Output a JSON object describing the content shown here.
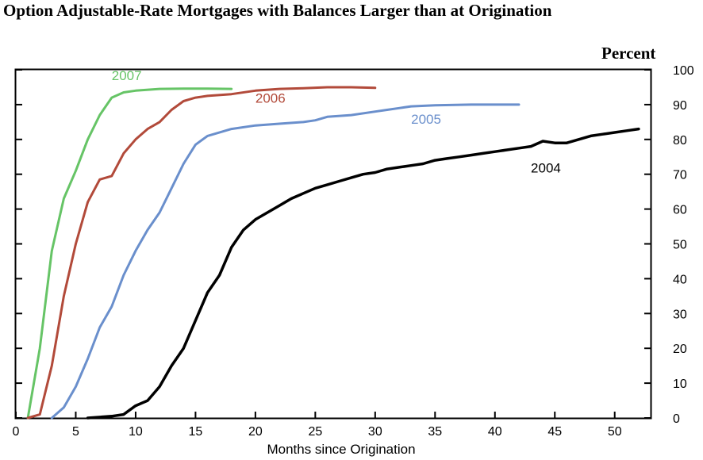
{
  "chart_data": {
    "type": "line",
    "title": "Option Adjustable-Rate Mortgages with Balances Larger than at Origination",
    "xlabel": "Months since Origination",
    "ylabel": "Percent",
    "xlim": [
      0,
      53
    ],
    "ylim": [
      0,
      100
    ],
    "x_ticks": [
      0,
      5,
      10,
      15,
      20,
      25,
      30,
      35,
      40,
      45,
      50
    ],
    "y_ticks": [
      0,
      10,
      20,
      30,
      40,
      50,
      60,
      70,
      80,
      90,
      100
    ],
    "y_axis_side": "right",
    "grid": false,
    "series": [
      {
        "name": "2007",
        "color": "#66c466",
        "points": [
          [
            1,
            0
          ],
          [
            2,
            20
          ],
          [
            3,
            48
          ],
          [
            4,
            63
          ],
          [
            5,
            71
          ],
          [
            6,
            80
          ],
          [
            7,
            87
          ],
          [
            8,
            92
          ],
          [
            9,
            93.5
          ],
          [
            10,
            94
          ],
          [
            12,
            94.5
          ],
          [
            14,
            94.6
          ],
          [
            16,
            94.6
          ],
          [
            18,
            94.5
          ]
        ]
      },
      {
        "name": "2006",
        "color": "#b24a3a",
        "points": [
          [
            1,
            0
          ],
          [
            2,
            1
          ],
          [
            3,
            15
          ],
          [
            4,
            35
          ],
          [
            5,
            50
          ],
          [
            6,
            62
          ],
          [
            7,
            68.5
          ],
          [
            8,
            69.5
          ],
          [
            9,
            76
          ],
          [
            10,
            80
          ],
          [
            11,
            83
          ],
          [
            12,
            85
          ],
          [
            13,
            88.5
          ],
          [
            14,
            91
          ],
          [
            15,
            92
          ],
          [
            16,
            92.5
          ],
          [
            18,
            93
          ],
          [
            20,
            94
          ],
          [
            22,
            94.5
          ],
          [
            24,
            94.7
          ],
          [
            26,
            95
          ],
          [
            28,
            95
          ],
          [
            30,
            94.8
          ]
        ]
      },
      {
        "name": "2005",
        "color": "#6a8fcc",
        "points": [
          [
            3,
            0
          ],
          [
            4,
            3
          ],
          [
            5,
            9
          ],
          [
            6,
            17
          ],
          [
            7,
            26
          ],
          [
            8,
            32
          ],
          [
            9,
            41
          ],
          [
            10,
            48
          ],
          [
            11,
            54
          ],
          [
            12,
            59
          ],
          [
            13,
            66
          ],
          [
            14,
            73
          ],
          [
            15,
            78.5
          ],
          [
            16,
            81
          ],
          [
            18,
            83
          ],
          [
            20,
            84
          ],
          [
            22,
            84.5
          ],
          [
            24,
            85
          ],
          [
            25,
            85.5
          ],
          [
            26,
            86.5
          ],
          [
            28,
            87
          ],
          [
            30,
            88
          ],
          [
            31,
            88.5
          ],
          [
            32,
            89
          ],
          [
            33,
            89.5
          ],
          [
            35,
            89.8
          ],
          [
            38,
            90
          ],
          [
            42,
            90
          ]
        ]
      },
      {
        "name": "2004",
        "color": "#000000",
        "points": [
          [
            6,
            0
          ],
          [
            8,
            0.5
          ],
          [
            9,
            1
          ],
          [
            10,
            3.5
          ],
          [
            11,
            5
          ],
          [
            12,
            9
          ],
          [
            13,
            15
          ],
          [
            14,
            20
          ],
          [
            15,
            28
          ],
          [
            16,
            36
          ],
          [
            17,
            41
          ],
          [
            18,
            49
          ],
          [
            19,
            54
          ],
          [
            20,
            57
          ],
          [
            21,
            59
          ],
          [
            22,
            61
          ],
          [
            23,
            63
          ],
          [
            24,
            64.5
          ],
          [
            25,
            66
          ],
          [
            26,
            67
          ],
          [
            27,
            68
          ],
          [
            28,
            69
          ],
          [
            29,
            70
          ],
          [
            30,
            70.5
          ],
          [
            31,
            71.5
          ],
          [
            32,
            72
          ],
          [
            33,
            72.5
          ],
          [
            34,
            73
          ],
          [
            35,
            74
          ],
          [
            36,
            74.5
          ],
          [
            37,
            75
          ],
          [
            38,
            75.5
          ],
          [
            39,
            76
          ],
          [
            40,
            76.5
          ],
          [
            41,
            77
          ],
          [
            42,
            77.5
          ],
          [
            43,
            78
          ],
          [
            44,
            79.5
          ],
          [
            45,
            79
          ],
          [
            46,
            79
          ],
          [
            47,
            80
          ],
          [
            48,
            81
          ],
          [
            49,
            81.5
          ],
          [
            50,
            82
          ],
          [
            51,
            82.5
          ],
          [
            52,
            83
          ]
        ]
      }
    ],
    "annotations": [
      {
        "text": "2007",
        "x": 8,
        "y": 97,
        "color": "#66c466"
      },
      {
        "text": "2006",
        "x": 20,
        "y": 90.5,
        "color": "#b24a3a"
      },
      {
        "text": "2005",
        "x": 33,
        "y": 84.5,
        "color": "#6a8fcc"
      },
      {
        "text": "2004",
        "x": 43,
        "y": 70.5,
        "color": "#000000"
      }
    ]
  }
}
